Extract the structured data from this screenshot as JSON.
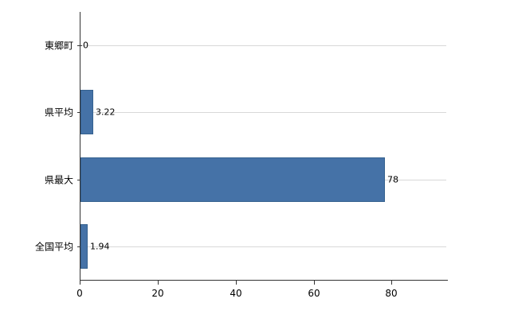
{
  "chart_data": {
    "type": "bar",
    "orientation": "horizontal",
    "title": "",
    "xlabel": "",
    "ylabel": "",
    "categories": [
      "東郷町",
      "県平均",
      "県最大",
      "全国平均"
    ],
    "values": [
      0,
      3.22,
      78,
      1.94
    ],
    "value_labels": [
      "0",
      "3.22",
      "78",
      "1.94"
    ],
    "xticks": [
      0,
      20,
      40,
      60,
      80
    ],
    "xtick_labels": [
      "0",
      "20",
      "40",
      "60",
      "80"
    ],
    "xlim": [
      0,
      94
    ],
    "grid": "horizontal-category-lines",
    "legend": "none",
    "bar_color": "#4572a7",
    "bar_border_color": "#35618f",
    "gridline_color": "#d8d8d8",
    "axis_color": "#333333",
    "background_color": "#ffffff"
  }
}
